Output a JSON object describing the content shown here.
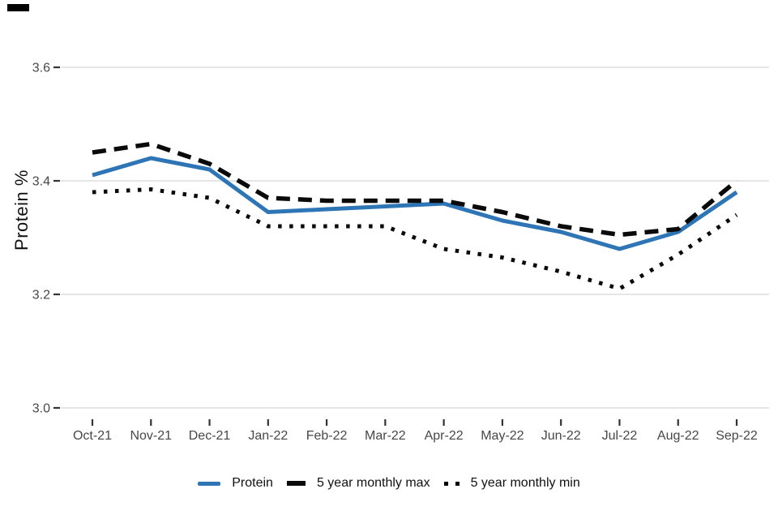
{
  "y_axis_title": "Protein %",
  "chart_data": {
    "type": "line",
    "title": "",
    "xlabel": "",
    "ylabel": "Protein %",
    "grid": "horizontal",
    "legend_position": "bottom",
    "ylim": [
      3.0,
      3.6
    ],
    "categories": [
      "Oct-21",
      "Nov-21",
      "Dec-21",
      "Jan-22",
      "Feb-22",
      "Mar-22",
      "Apr-22",
      "May-22",
      "Jun-22",
      "Jul-22",
      "Aug-22",
      "Sep-22"
    ],
    "y_ticks": [
      {
        "value": 3.6,
        "label": "3.6"
      },
      {
        "value": 3.4,
        "label": "3.4"
      },
      {
        "value": 3.2,
        "label": "3.2"
      },
      {
        "value": 3.0,
        "label": "3.0"
      }
    ],
    "series": [
      {
        "name": "Protein",
        "style": "solid",
        "color": "#2e75b6",
        "values": [
          3.41,
          3.44,
          3.42,
          3.345,
          3.35,
          3.355,
          3.36,
          3.33,
          3.31,
          3.28,
          3.31,
          3.38
        ]
      },
      {
        "name": "5 year monthly max",
        "style": "dashed",
        "color": "#0a0a0a",
        "values": [
          3.45,
          3.465,
          3.43,
          3.37,
          3.365,
          3.365,
          3.365,
          3.345,
          3.32,
          3.305,
          3.315,
          3.4
        ]
      },
      {
        "name": "5 year monthly min",
        "style": "dotted",
        "color": "#0a0a0a",
        "values": [
          3.38,
          3.385,
          3.37,
          3.32,
          3.32,
          3.32,
          3.28,
          3.265,
          3.24,
          3.21,
          3.27,
          3.34
        ]
      }
    ],
    "colors": {
      "grid": "#e6e6e6",
      "tick_mark": "#333333",
      "axis_text": "#474747",
      "axis_title": "#111111"
    }
  }
}
